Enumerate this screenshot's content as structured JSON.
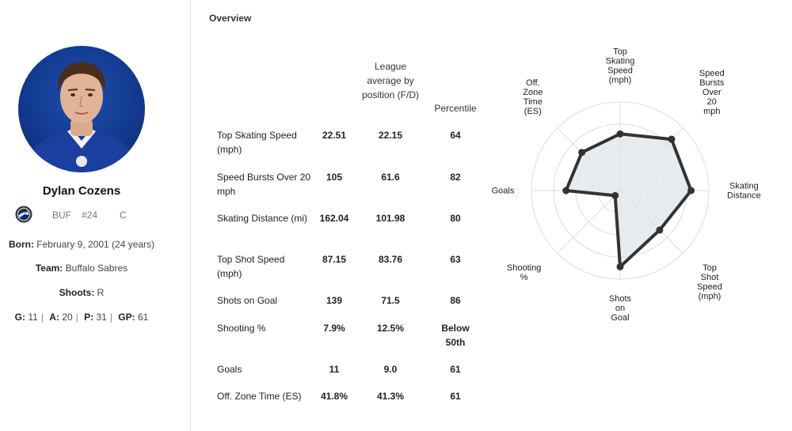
{
  "player": {
    "name": "Dylan Cozens",
    "team_abbr": "BUF",
    "number": "#24",
    "position": "C",
    "born_label": "Born:",
    "born_value": "February 9, 2001 (24 years)",
    "team_label": "Team:",
    "team_value": "Buffalo Sabres",
    "shoots_label": "Shoots:",
    "shoots_value": "R",
    "stats": [
      {
        "label": "G:",
        "value": "11"
      },
      {
        "label": "A:",
        "value": "20"
      },
      {
        "label": "P:",
        "value": "31"
      },
      {
        "label": "GP:",
        "value": "61"
      }
    ]
  },
  "overview": {
    "title": "Overview",
    "col_avg": "League average by position (F/D)",
    "col_pct": "Percentile",
    "rows": [
      {
        "label": "Top Skating Speed (mph)",
        "player": "22.51",
        "avg": "22.15",
        "pct": "64"
      },
      {
        "label": "Speed Bursts Over 20 mph",
        "player": "105",
        "avg": "61.6",
        "pct": "82"
      },
      {
        "label": "Skating Distance (mi)",
        "player": "162.04",
        "avg": "101.98",
        "pct": "80"
      },
      {
        "label": "Top Shot Speed (mph)",
        "player": "87.15",
        "avg": "83.76",
        "pct": "63"
      },
      {
        "label": "Shots on Goal",
        "player": "139",
        "avg": "71.5",
        "pct": "86"
      },
      {
        "label": "Shooting %",
        "player": "7.9%",
        "avg": "12.5%",
        "pct": "Below 50th"
      },
      {
        "label": "Goals",
        "player": "11",
        "avg": "9.0",
        "pct": "61"
      },
      {
        "label": "Off. Zone Time (ES)",
        "player": "41.8%",
        "avg": "41.3%",
        "pct": "61"
      }
    ]
  },
  "chart_data": {
    "type": "radar",
    "axes": [
      "Top Skating Speed (mph)",
      "Speed Bursts Over 20 mph",
      "Skating Distance",
      "Top Shot Speed (mph)",
      "Shots on Goal",
      "Shooting %",
      "Goals",
      "Off. Zone Time (ES)"
    ],
    "axis_label_lines": [
      [
        "Top",
        "Skating",
        "Speed",
        "(mph)"
      ],
      [
        "Speed",
        "Bursts",
        "Over",
        "20",
        "mph"
      ],
      [
        "Skating",
        "Distance"
      ],
      [
        "Top",
        "Shot",
        "Speed",
        "(mph)"
      ],
      [
        "Shots",
        "on",
        "Goal"
      ],
      [
        "Shooting",
        "%"
      ],
      [
        "Goals"
      ],
      [
        "Off.",
        "Zone",
        "Time",
        "(ES)"
      ]
    ],
    "values": [
      64,
      82,
      80,
      63,
      86,
      8,
      61,
      61
    ],
    "range": [
      0,
      100
    ],
    "rings": 4,
    "colors": {
      "fill": "#dfe5ec",
      "line": "#333333",
      "grid": "#dddddd"
    }
  }
}
